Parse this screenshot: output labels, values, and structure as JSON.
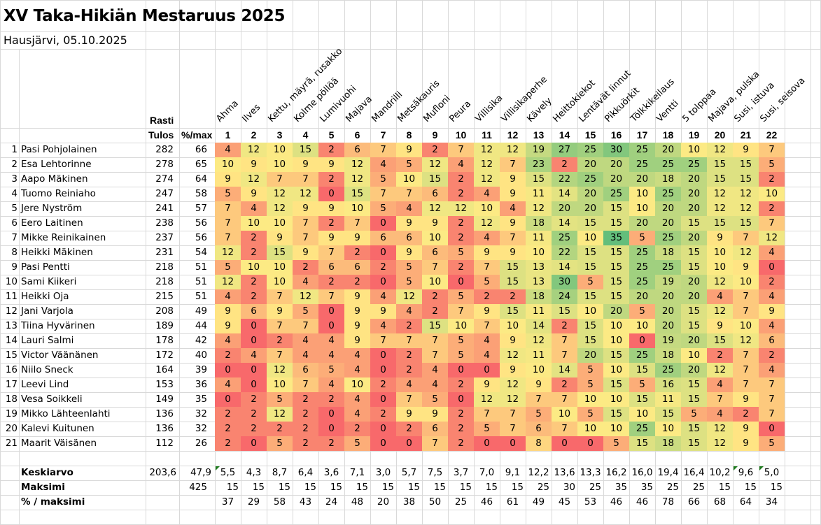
{
  "title": "XV Taka-Hikiän Mestaruus 2025",
  "subtitle": "Hausjärvi, 05.10.2025",
  "header": {
    "rasti_label": "Rasti",
    "tulos_label": "Tulos",
    "pct_label": "%/max"
  },
  "stations": [
    {
      "no": "1",
      "name": "Ahma"
    },
    {
      "no": "2",
      "name": "Ilves"
    },
    {
      "no": "3",
      "name": "Kettu, mäyrä, rusakko"
    },
    {
      "no": "4",
      "name": "Kolme pöllöä"
    },
    {
      "no": "5",
      "name": "Lumivuohi"
    },
    {
      "no": "6",
      "name": "Majava"
    },
    {
      "no": "7",
      "name": "Mandrilli"
    },
    {
      "no": "8",
      "name": "Metsäkauris"
    },
    {
      "no": "9",
      "name": "Mufloni"
    },
    {
      "no": "10",
      "name": "Peura"
    },
    {
      "no": "11",
      "name": "Villisika"
    },
    {
      "no": "12",
      "name": "Villisikaperhe"
    },
    {
      "no": "13",
      "name": "Kävely"
    },
    {
      "no": "14",
      "name": "Heittokiekot"
    },
    {
      "no": "15",
      "name": "Lentävät linnut"
    },
    {
      "no": "16",
      "name": "Pikkuörkit"
    },
    {
      "no": "17",
      "name": "Tölkkikeilaus"
    },
    {
      "no": "18",
      "name": "Ventti"
    },
    {
      "no": "19",
      "name": "5 tolppaa"
    },
    {
      "no": "20",
      "name": "Majava, pulska"
    },
    {
      "no": "21",
      "name": "Susi, istuva"
    },
    {
      "no": "22",
      "name": "Susi, seisova"
    }
  ],
  "rows": [
    {
      "rank": "1",
      "name": "Pasi Pohjolainen",
      "total": "282",
      "pct": "66",
      "scores": [
        4,
        12,
        10,
        15,
        2,
        6,
        7,
        9,
        2,
        7,
        12,
        12,
        19,
        27,
        25,
        30,
        25,
        20,
        10,
        12,
        9,
        7
      ]
    },
    {
      "rank": "2",
      "name": "Esa Lehtorinne",
      "total": "278",
      "pct": "65",
      "scores": [
        10,
        9,
        10,
        9,
        9,
        12,
        4,
        5,
        12,
        4,
        12,
        7,
        23,
        2,
        20,
        20,
        25,
        25,
        25,
        15,
        15,
        5
      ]
    },
    {
      "rank": "3",
      "name": "Aapo Mäkinen",
      "total": "274",
      "pct": "64",
      "scores": [
        9,
        12,
        7,
        7,
        2,
        12,
        5,
        10,
        15,
        2,
        12,
        9,
        15,
        22,
        25,
        20,
        20,
        18,
        20,
        15,
        15,
        2
      ]
    },
    {
      "rank": "4",
      "name": "Tuomo Reiniaho",
      "total": "247",
      "pct": "58",
      "scores": [
        5,
        9,
        12,
        12,
        0,
        15,
        7,
        7,
        6,
        2,
        4,
        9,
        11,
        14,
        20,
        25,
        10,
        25,
        20,
        12,
        12,
        10
      ]
    },
    {
      "rank": "5",
      "name": "Jere Nyström",
      "total": "241",
      "pct": "57",
      "scores": [
        7,
        4,
        12,
        9,
        9,
        10,
        5,
        4,
        12,
        12,
        10,
        4,
        12,
        20,
        20,
        15,
        10,
        20,
        20,
        12,
        12,
        2
      ]
    },
    {
      "rank": "6",
      "name": "Eero Laitinen",
      "total": "238",
      "pct": "56",
      "scores": [
        7,
        10,
        10,
        7,
        2,
        7,
        0,
        9,
        9,
        2,
        12,
        9,
        18,
        14,
        15,
        15,
        20,
        20,
        15,
        15,
        15,
        7
      ]
    },
    {
      "rank": "7",
      "name": "Mikke Reinikainen",
      "total": "237",
      "pct": "56",
      "scores": [
        7,
        2,
        9,
        7,
        9,
        9,
        6,
        6,
        10,
        2,
        4,
        7,
        11,
        25,
        10,
        35,
        5,
        25,
        20,
        9,
        7,
        12
      ]
    },
    {
      "rank": "8",
      "name": "Heikki Mäkinen",
      "total": "231",
      "pct": "54",
      "scores": [
        12,
        2,
        15,
        9,
        7,
        2,
        0,
        9,
        6,
        5,
        9,
        9,
        10,
        22,
        15,
        15,
        25,
        18,
        15,
        10,
        12,
        4
      ]
    },
    {
      "rank": "9",
      "name": "Pasi Pentti",
      "total": "218",
      "pct": "51",
      "scores": [
        5,
        10,
        10,
        2,
        6,
        6,
        2,
        5,
        7,
        2,
        7,
        15,
        13,
        14,
        15,
        15,
        25,
        25,
        15,
        10,
        9,
        0
      ]
    },
    {
      "rank": "10",
      "name": "Sami Kiikeri",
      "total": "218",
      "pct": "51",
      "scores": [
        12,
        2,
        10,
        4,
        2,
        2,
        0,
        5,
        10,
        0,
        5,
        15,
        13,
        30,
        5,
        15,
        25,
        19,
        20,
        12,
        10,
        2
      ]
    },
    {
      "rank": "11",
      "name": "Heikki Oja",
      "total": "215",
      "pct": "51",
      "scores": [
        4,
        2,
        7,
        12,
        7,
        9,
        4,
        12,
        2,
        5,
        2,
        2,
        18,
        24,
        15,
        15,
        20,
        20,
        20,
        4,
        7,
        4
      ]
    },
    {
      "rank": "12",
      "name": "Jani Varjola",
      "total": "208",
      "pct": "49",
      "scores": [
        9,
        6,
        9,
        5,
        0,
        9,
        9,
        4,
        2,
        7,
        9,
        15,
        11,
        15,
        10,
        20,
        5,
        20,
        15,
        12,
        7,
        9
      ]
    },
    {
      "rank": "13",
      "name": "Tiina Hyvärinen",
      "total": "189",
      "pct": "44",
      "scores": [
        9,
        0,
        7,
        7,
        0,
        9,
        4,
        2,
        15,
        10,
        7,
        10,
        14,
        2,
        15,
        10,
        10,
        20,
        15,
        9,
        10,
        4
      ]
    },
    {
      "rank": "14",
      "name": "Lauri Salmi",
      "total": "178",
      "pct": "42",
      "scores": [
        4,
        0,
        2,
        4,
        4,
        9,
        7,
        7,
        7,
        5,
        4,
        9,
        12,
        7,
        15,
        10,
        0,
        19,
        20,
        15,
        12,
        6
      ]
    },
    {
      "rank": "15",
      "name": "Victor Väänänen",
      "total": "172",
      "pct": "40",
      "scores": [
        2,
        4,
        7,
        4,
        4,
        4,
        0,
        2,
        7,
        5,
        4,
        12,
        11,
        7,
        20,
        15,
        25,
        18,
        10,
        2,
        7,
        2
      ]
    },
    {
      "rank": "16",
      "name": "Niilo Sneck",
      "total": "164",
      "pct": "39",
      "scores": [
        0,
        0,
        12,
        6,
        5,
        4,
        0,
        2,
        4,
        0,
        0,
        9,
        10,
        14,
        5,
        10,
        15,
        25,
        20,
        12,
        7,
        4
      ]
    },
    {
      "rank": "17",
      "name": "Leevi Lind",
      "total": "153",
      "pct": "36",
      "scores": [
        4,
        0,
        10,
        7,
        4,
        10,
        2,
        4,
        4,
        2,
        9,
        12,
        9,
        2,
        5,
        15,
        5,
        16,
        15,
        4,
        7,
        7
      ]
    },
    {
      "rank": "18",
      "name": "Vesa Soikkeli",
      "total": "149",
      "pct": "35",
      "scores": [
        0,
        2,
        5,
        2,
        2,
        4,
        0,
        7,
        5,
        0,
        12,
        12,
        7,
        7,
        10,
        10,
        15,
        11,
        15,
        7,
        9,
        7
      ]
    },
    {
      "rank": "19",
      "name": "Mikko Lähteenlahti",
      "total": "136",
      "pct": "32",
      "scores": [
        2,
        2,
        12,
        2,
        0,
        4,
        2,
        9,
        9,
        2,
        7,
        7,
        5,
        10,
        5,
        15,
        10,
        15,
        5,
        4,
        2,
        7
      ]
    },
    {
      "rank": "20",
      "name": "Kalevi Kuitunen",
      "total": "136",
      "pct": "32",
      "scores": [
        2,
        2,
        2,
        2,
        0,
        2,
        0,
        2,
        6,
        2,
        5,
        7,
        6,
        7,
        10,
        10,
        25,
        10,
        15,
        12,
        9,
        0
      ]
    },
    {
      "rank": "21",
      "name": "Maarit Väisänen",
      "total": "112",
      "pct": "26",
      "scores": [
        2,
        0,
        5,
        2,
        2,
        5,
        0,
        0,
        7,
        2,
        0,
        0,
        8,
        0,
        0,
        5,
        15,
        18,
        15,
        12,
        9,
        5
      ]
    }
  ],
  "footer": {
    "avg": {
      "label": "Keskiarvo",
      "total": "203,6",
      "pct": "47,9",
      "values": [
        "5,5",
        "4,3",
        "8,7",
        "6,4",
        "3,6",
        "7,1",
        "3,0",
        "5,7",
        "7,5",
        "3,7",
        "7,0",
        "9,1",
        "12,2",
        "13,6",
        "13,3",
        "16,2",
        "16,0",
        "19,4",
        "16,4",
        "10,2",
        "9,6",
        "5,0"
      ]
    },
    "max": {
      "label": "Maksimi",
      "pct": "425",
      "values": [
        "15",
        "15",
        "15",
        "15",
        "15",
        "15",
        "15",
        "15",
        "15",
        "15",
        "15",
        "15",
        "25",
        "30",
        "25",
        "35",
        "35",
        "25",
        "25",
        "15",
        "15",
        "15"
      ]
    },
    "pctmax": {
      "label": "% / maksimi",
      "values": [
        "37",
        "29",
        "58",
        "43",
        "24",
        "48",
        "20",
        "38",
        "50",
        "25",
        "46",
        "61",
        "49",
        "45",
        "53",
        "46",
        "46",
        "78",
        "66",
        "68",
        "64",
        "34"
      ]
    }
  },
  "color_scale": {
    "min_color": "#F8696B",
    "mid_color": "#FFEB84",
    "max_color": "#63BE7B",
    "min": 0,
    "mid": 9.5,
    "max": 35
  },
  "flag_color": "#1E7B1E"
}
